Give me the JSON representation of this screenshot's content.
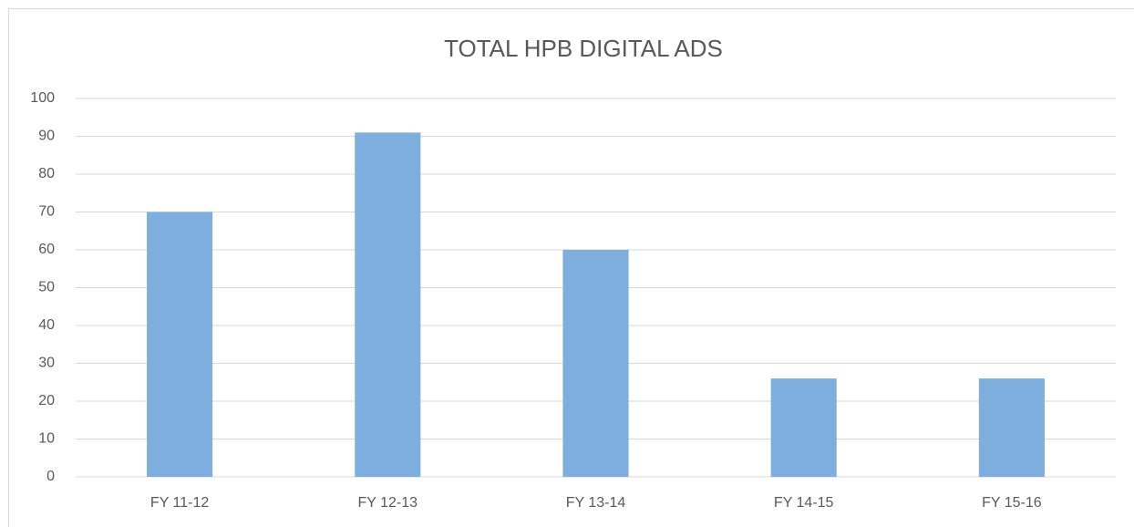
{
  "chart_data": {
    "type": "bar",
    "title": "TOTAL HPB DIGITAL ADS",
    "categories": [
      "FY 11-12",
      "FY 12-13",
      "FY 13-14",
      "FY 14-15",
      "FY 15-16"
    ],
    "values": [
      70,
      91,
      60,
      26,
      26
    ],
    "color": "#7eaedd",
    "ylim": [
      0,
      100
    ],
    "yticks": [
      0,
      10,
      20,
      30,
      40,
      50,
      60,
      70,
      80,
      90,
      100
    ],
    "grid": true
  }
}
